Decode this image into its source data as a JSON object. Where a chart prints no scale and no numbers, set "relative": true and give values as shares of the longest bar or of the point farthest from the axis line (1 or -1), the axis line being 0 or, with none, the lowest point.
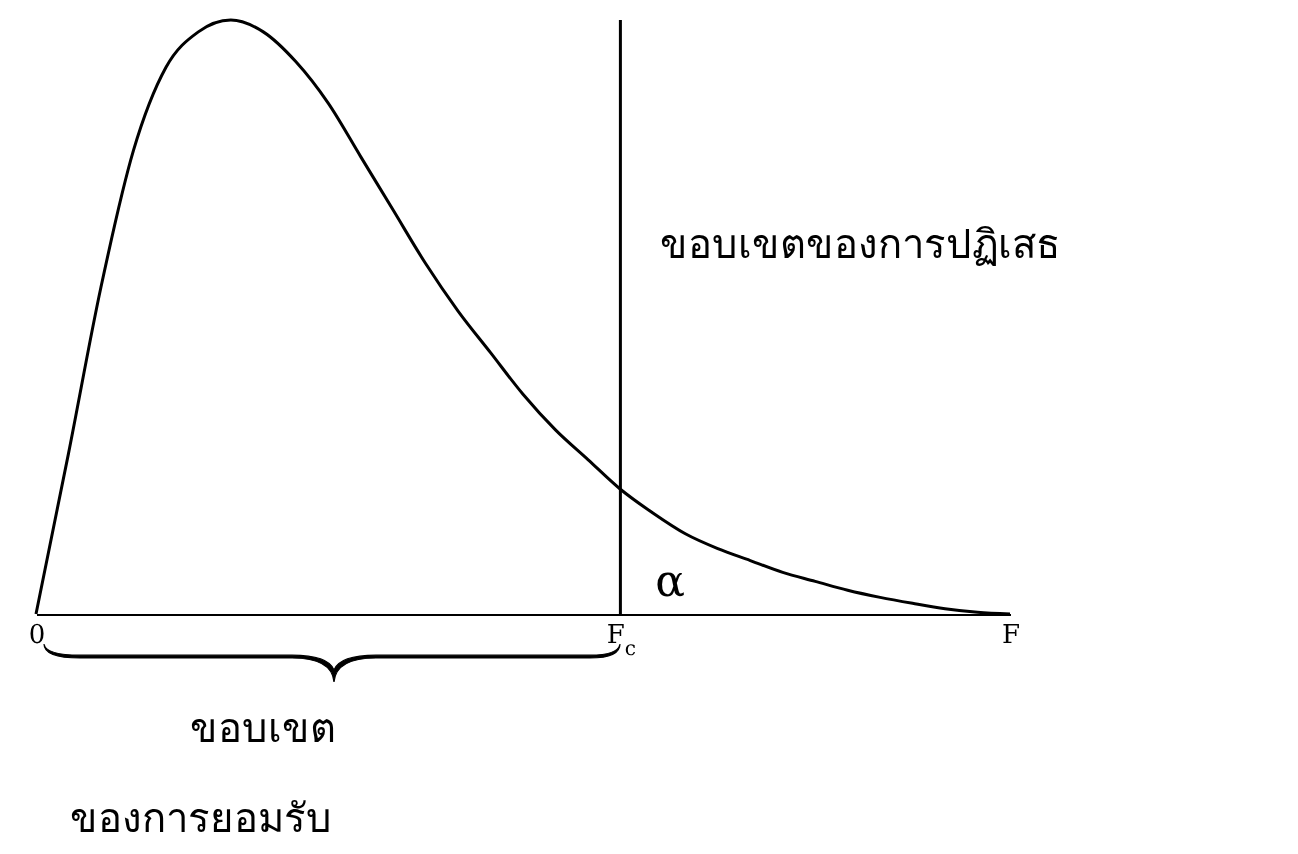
{
  "chart_data": {
    "type": "line",
    "relative": true,
    "color": "#000000",
    "categories": [
      "0",
      null,
      null,
      null,
      null,
      null,
      null,
      null,
      null,
      null,
      null,
      null,
      null,
      null,
      null,
      null,
      null,
      null,
      "F$_{c}$",
      null,
      null,
      null,
      null,
      null,
      null,
      null,
      null,
      null,
      null,
      null,
      "F"
    ],
    "values": [
      0,
      0.27,
      0.55,
      0.78,
      0.92,
      0.98,
      1,
      0.98,
      0.93,
      0.86,
      0.77,
      0.68,
      0.59,
      0.51,
      0.44,
      0.37,
      0.31,
      0.26,
      0.21,
      0.17,
      0.135,
      0.11,
      0.09,
      0.07,
      0.055,
      0.04,
      0.028,
      0.018,
      0.009,
      0.003,
      0
    ],
    "ref_lines": [
      {
        "axis": "x",
        "value": "F$_{c}$"
      }
    ],
    "annotations": [
      "ขอบเขตของการปฏิเสธ",
      "α",
      "ขอบเขต",
      "ของการยอมรับ"
    ]
  }
}
